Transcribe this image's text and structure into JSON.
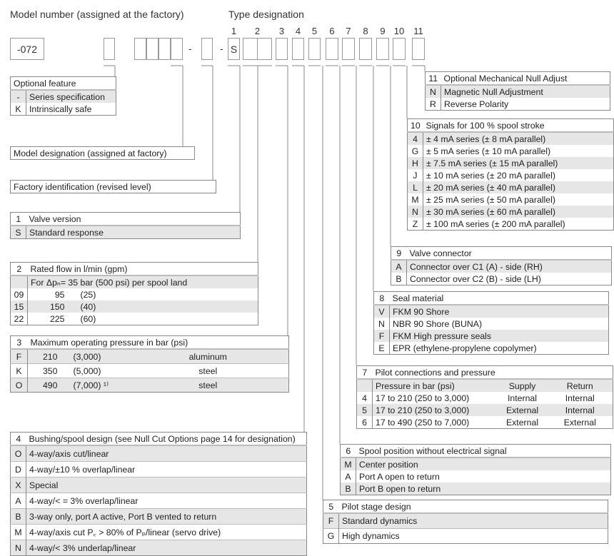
{
  "header": {
    "model_number_label": "Model number (assigned at the factory)",
    "type_designation_label": "Type designation"
  },
  "code": {
    "prefix": "-072",
    "dash1": "-",
    "dash2": "-",
    "pos1_value": "S",
    "positions": [
      "1",
      "2",
      "3",
      "4",
      "5",
      "6",
      "7",
      "8",
      "9",
      "10",
      "11"
    ]
  },
  "tables": {
    "optional": {
      "title": "Optional feature",
      "rows": [
        [
          "-",
          "Series specification"
        ],
        [
          "K",
          "Intrinsically safe"
        ]
      ]
    },
    "model": {
      "title": "Model designation (assigned at factory)",
      "rows": []
    },
    "factory": {
      "title": "Factory identification (revised level)",
      "rows": []
    },
    "t1": {
      "num": "1",
      "title": "Valve version",
      "rows": [
        [
          "S",
          "Standard response"
        ]
      ]
    },
    "t2": {
      "num": "2",
      "title": "Rated flow in l/min (gpm)",
      "sub": [
        "",
        "For Δpₙ= 35 bar (500 psi) per spool land"
      ],
      "rows": [
        [
          "09",
          "95",
          "(25)"
        ],
        [
          "15",
          "150",
          "(40)"
        ],
        [
          "22",
          "225",
          "(60)"
        ]
      ]
    },
    "t3": {
      "num": "3",
      "title": "Maximum operating pressure in bar (psi)",
      "rows": [
        [
          "F",
          "210",
          "(3,000)",
          "aluminum"
        ],
        [
          "K",
          "350",
          "(5,000)",
          "steel"
        ],
        [
          "O",
          "490",
          "(7,000) ¹⁾",
          "steel"
        ]
      ]
    },
    "t4": {
      "num": "4",
      "title": "Bushing/spool design (see Null Cut Options page 14 for designation)",
      "rows": [
        [
          "O",
          "4-way/axis cut/linear"
        ],
        [
          "D",
          "4-way/±10 % overlap/linear"
        ],
        [
          "X",
          "Special"
        ],
        [
          "A",
          "4-way/< = 3% overlap/linear"
        ],
        [
          "B",
          "3-way only, port A active, Port B vented to return"
        ],
        [
          "M",
          "4-way/axis cut P꜀ > 80% of Pₚ/linear (servo drive)"
        ],
        [
          "N",
          "4-way/< 3% underlap/linear"
        ]
      ]
    },
    "t5": {
      "num": "5",
      "title": "Pilot stage design",
      "rows": [
        [
          "F",
          "Standard dynamics"
        ],
        [
          "G",
          "High dynamics"
        ]
      ]
    },
    "t6": {
      "num": "6",
      "title": "Spool position without electrical signal",
      "rows": [
        [
          "M",
          "Center position"
        ],
        [
          "A",
          "Port A open to return"
        ],
        [
          "B",
          "Port B open to return"
        ]
      ]
    },
    "t7": {
      "num": "7",
      "title": "Pilot connections and pressure",
      "sub": [
        "",
        "Pressure in bar (psi)",
        "Supply",
        "Return"
      ],
      "rows": [
        [
          "4",
          "17 to 210 (250 to 3,000)",
          "Internal",
          "Internal"
        ],
        [
          "5",
          "17 to 210 (250 to 3,000)",
          "External",
          "Internal"
        ],
        [
          "6",
          "17 to 490 (250 to 7,000)",
          "External",
          "External"
        ]
      ]
    },
    "t8": {
      "num": "8",
      "title": "Seal material",
      "rows": [
        [
          "V",
          "FKM 90 Shore"
        ],
        [
          "N",
          "NBR 90 Shore (BUNA)"
        ],
        [
          "F",
          "FKM High pressure seals"
        ],
        [
          "E",
          "EPR (ethylene-propylene copolymer)"
        ]
      ]
    },
    "t9": {
      "num": "9",
      "title": "Valve connector",
      "rows": [
        [
          "A",
          "Connector over C1 (A) - side (RH)"
        ],
        [
          "B",
          "Connector over C2 (B) - side (LH)"
        ]
      ]
    },
    "t10": {
      "num": "10",
      "title": "Signals for 100 % spool stroke",
      "rows": [
        [
          "4",
          "± 4 mA series (± 8 mA parallel)"
        ],
        [
          "G",
          "± 5 mA series (± 10 mA parallel)"
        ],
        [
          "H",
          "± 7.5 mA series (± 15 mA parallel)"
        ],
        [
          "J",
          "± 10 mA series (± 20 mA parallel)"
        ],
        [
          "L",
          "± 20 mA series (± 40 mA parallel)"
        ],
        [
          "M",
          "± 25 mA series (± 50 mA parallel)"
        ],
        [
          "N",
          "± 30 mA series (± 60 mA parallel)"
        ],
        [
          "Z",
          "± 100 mA series (± 200 mA parallel)"
        ]
      ]
    },
    "t11": {
      "num": "11",
      "title": "Optional Mechanical Null Adjust",
      "rows": [
        [
          "N",
          "Magnetic Null Adjustment"
        ],
        [
          "R",
          "Reverse Polarity"
        ]
      ]
    }
  }
}
